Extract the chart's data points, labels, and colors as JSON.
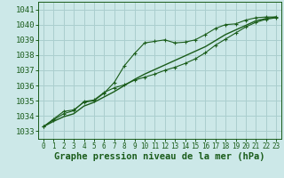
{
  "background_color": "#cce8e8",
  "grid_color": "#aacece",
  "line_color": "#1a5c1a",
  "xlabel": "Graphe pression niveau de la mer (hPa)",
  "xlabel_fontsize": 7.5,
  "tick_fontsize": 6.5,
  "xlim": [
    -0.5,
    23.5
  ],
  "ylim": [
    1032.5,
    1041.5
  ],
  "yticks": [
    1033,
    1034,
    1035,
    1036,
    1037,
    1038,
    1039,
    1040,
    1041
  ],
  "xticks": [
    0,
    1,
    2,
    3,
    4,
    5,
    6,
    7,
    8,
    9,
    10,
    11,
    12,
    13,
    14,
    15,
    16,
    17,
    18,
    19,
    20,
    21,
    22,
    23
  ],
  "series1_x": [
    0,
    1,
    2,
    3,
    4,
    5,
    6,
    7,
    8,
    9,
    10,
    11,
    12,
    13,
    14,
    15,
    16,
    17,
    18,
    19,
    20,
    21,
    22,
    23
  ],
  "series1_y": [
    1033.3,
    1033.8,
    1034.3,
    1034.4,
    1034.9,
    1035.0,
    1035.5,
    1036.2,
    1037.3,
    1038.1,
    1038.8,
    1038.9,
    1039.0,
    1038.8,
    1038.85,
    1039.0,
    1039.35,
    1039.75,
    1040.0,
    1040.05,
    1040.3,
    1040.45,
    1040.5,
    1040.5
  ],
  "series2_x": [
    0,
    1,
    2,
    3,
    4,
    5,
    6,
    7,
    8,
    9,
    10,
    11,
    12,
    13,
    14,
    15,
    16,
    17,
    18,
    19,
    20,
    21,
    22,
    23
  ],
  "series2_y": [
    1033.3,
    1033.75,
    1034.15,
    1034.35,
    1034.95,
    1035.05,
    1035.55,
    1035.85,
    1036.05,
    1036.35,
    1036.55,
    1036.75,
    1037.0,
    1037.2,
    1037.45,
    1037.75,
    1038.15,
    1038.65,
    1039.05,
    1039.45,
    1039.85,
    1040.15,
    1040.35,
    1040.45
  ],
  "series3_x": [
    0,
    1,
    2,
    3,
    4,
    5,
    6,
    7,
    8,
    9,
    10,
    11,
    12,
    13,
    14,
    15,
    16,
    17,
    18,
    19,
    20,
    21,
    22,
    23
  ],
  "series3_y": [
    1033.3,
    1033.65,
    1033.95,
    1034.15,
    1034.65,
    1034.9,
    1035.25,
    1035.6,
    1036.0,
    1036.4,
    1036.75,
    1037.05,
    1037.35,
    1037.65,
    1037.95,
    1038.25,
    1038.55,
    1038.95,
    1039.35,
    1039.65,
    1039.95,
    1040.25,
    1040.4,
    1040.5
  ]
}
